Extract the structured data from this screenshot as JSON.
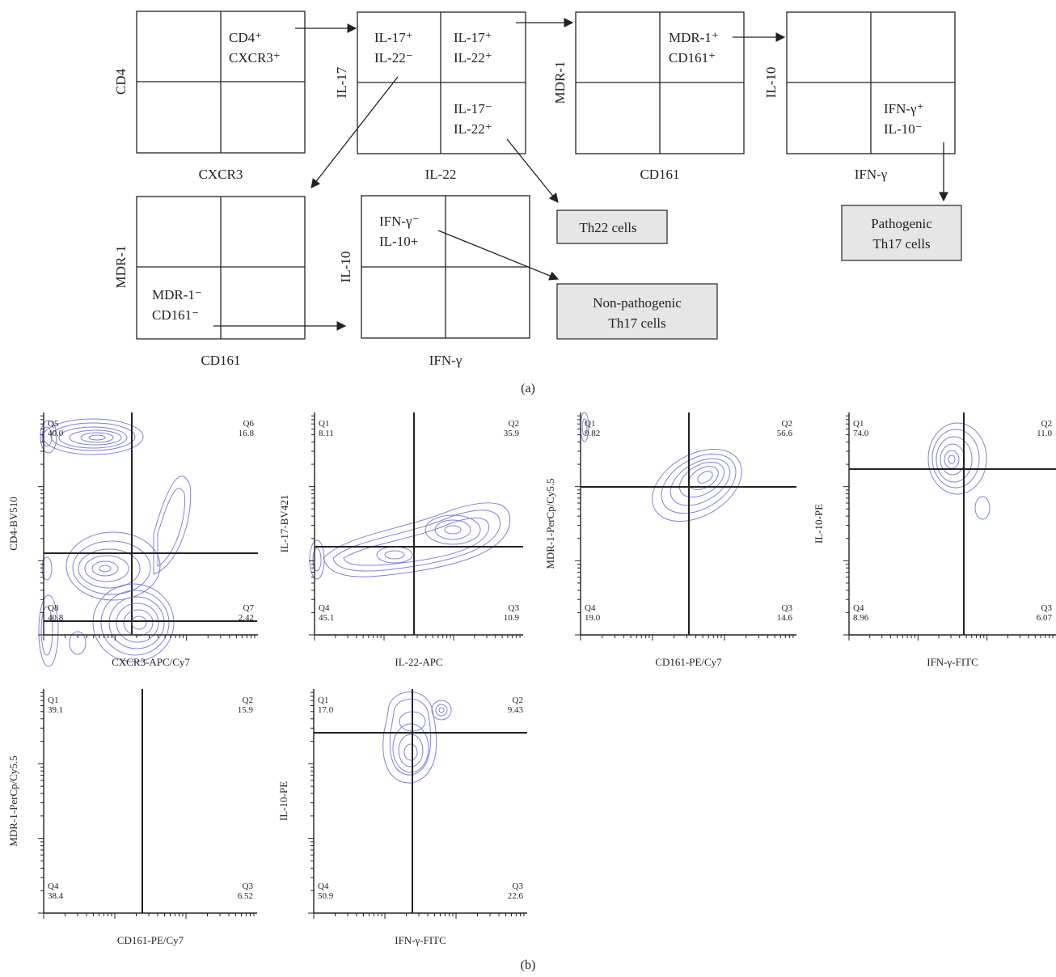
{
  "panel_a": {
    "caption": "(a)",
    "gates": [
      {
        "id": "g1",
        "x_axis": "CXCR3",
        "y_axis": "CD4",
        "quadrant_label": {
          "q": "TR",
          "lines": [
            "CD4⁺",
            "CXCR3⁺"
          ]
        }
      },
      {
        "id": "g2",
        "x_axis": "IL-22",
        "y_axis": "IL-17",
        "quadrant_labels": [
          {
            "q": "TL",
            "lines": [
              "IL-17⁺",
              "IL-22⁻"
            ]
          },
          {
            "q": "TR",
            "lines": [
              "IL-17⁺",
              "IL-22⁺"
            ]
          },
          {
            "q": "BR",
            "lines": [
              "IL-17⁻",
              "IL-22⁺"
            ]
          }
        ]
      },
      {
        "id": "g3",
        "x_axis": "CD161",
        "y_axis": "MDR-1",
        "quadrant_label": {
          "q": "TR",
          "lines": [
            "MDR-1⁺",
            "CD161⁺"
          ]
        }
      },
      {
        "id": "g4",
        "x_axis": "IFN-γ",
        "y_axis": "IL-10",
        "quadrant_label": {
          "q": "BR",
          "lines": [
            "IFN-γ⁺",
            "IL-10⁻"
          ]
        }
      },
      {
        "id": "g5",
        "x_axis": "CD161",
        "y_axis": "MDR-1",
        "quadrant_label": {
          "q": "BL",
          "lines": [
            "MDR-1⁻",
            "CD161⁻"
          ]
        }
      },
      {
        "id": "g6",
        "x_axis": "IFN-γ",
        "y_axis": "IL-10",
        "quadrant_label": {
          "q": "TL",
          "lines": [
            "IFN-γ⁻",
            "IL-10+"
          ]
        }
      }
    ],
    "outcomes": {
      "th22": "Th22  cells",
      "pathogenic": [
        "Pathogenic",
        "Th17 cells"
      ],
      "nonpathogenic": [
        "Non-pathogenic",
        "Th17 cells"
      ]
    }
  },
  "panel_b": {
    "caption": "(b)",
    "plots": [
      {
        "xlabel": "CXCR3-APC/Cy7",
        "ylabel": "CD4-BV510",
        "quads": [
          [
            "Q5",
            "40.0"
          ],
          [
            "Q6",
            "16.8"
          ],
          [
            "Q8",
            "40.8"
          ],
          [
            "Q7",
            "2.42"
          ]
        ]
      },
      {
        "xlabel": "IL-22-APC",
        "ylabel": "IL-17-BV421",
        "quads": [
          [
            "Q1",
            "8.11"
          ],
          [
            "Q2",
            "35.9"
          ],
          [
            "Q4",
            "45.1"
          ],
          [
            "Q3",
            "10.9"
          ]
        ]
      },
      {
        "xlabel": "CD161-PE/Cy7",
        "ylabel": "MDR-1-PerCp/Cy5.5",
        "quads": [
          [
            "Q1",
            "9.82"
          ],
          [
            "Q2",
            "56.6"
          ],
          [
            "Q4",
            "19.0"
          ],
          [
            "Q3",
            "14.6"
          ]
        ]
      },
      {
        "xlabel": "IFN-γ-FITC",
        "ylabel": "IL-10-PE",
        "quads": [
          [
            "Q1",
            "74.0"
          ],
          [
            "Q2",
            "11.0"
          ],
          [
            "Q4",
            "8.96"
          ],
          [
            "Q3",
            "6.07"
          ]
        ]
      },
      {
        "xlabel": "CD161-PE/Cy7",
        "ylabel": "MDR-1-PerCp/Cy5.5",
        "quads": [
          [
            "Q1",
            "39.1"
          ],
          [
            "Q2",
            "15.9"
          ],
          [
            "Q4",
            "38.4"
          ],
          [
            "Q3",
            "6.52"
          ]
        ]
      },
      {
        "xlabel": "IFN-γ-FITC",
        "ylabel": "IL-10-PE",
        "quads": [
          [
            "Q1",
            "17.0"
          ],
          [
            "Q2",
            "9.43"
          ],
          [
            "Q4",
            "50.9"
          ],
          [
            "Q3",
            "22.6"
          ]
        ]
      }
    ]
  },
  "colors": {
    "contour": "#6a6ad6",
    "box_fill": "#e6e6e6",
    "line": "#222222"
  }
}
